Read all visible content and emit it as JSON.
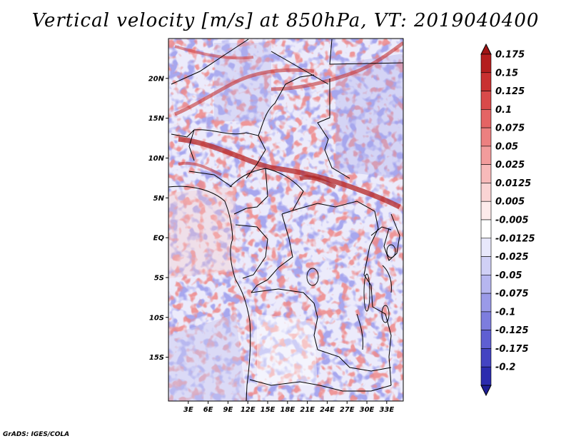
{
  "title": "Vertical velocity [m/s] at 850hPa, VT: 2019040400",
  "footer": "GrADS: IGES/COLA",
  "map": {
    "lon_range": [
      0,
      35.5
    ],
    "lat_range": [
      -20.5,
      25
    ],
    "lat_ticks": [
      {
        "value": 20,
        "label": "20N"
      },
      {
        "value": 15,
        "label": "15N"
      },
      {
        "value": 10,
        "label": "10N"
      },
      {
        "value": 5,
        "label": "5N"
      },
      {
        "value": 0,
        "label": "EQ"
      },
      {
        "value": -5,
        "label": "5S"
      },
      {
        "value": -10,
        "label": "10S"
      },
      {
        "value": -15,
        "label": "15S"
      }
    ],
    "lon_ticks": [
      {
        "value": 3,
        "label": "3E"
      },
      {
        "value": 6,
        "label": "6E"
      },
      {
        "value": 9,
        "label": "9E"
      },
      {
        "value": 12,
        "label": "12E"
      },
      {
        "value": 15,
        "label": "15E"
      },
      {
        "value": 18,
        "label": "18E"
      },
      {
        "value": 21,
        "label": "21E"
      },
      {
        "value": 24,
        "label": "24E"
      },
      {
        "value": 27,
        "label": "27E"
      },
      {
        "value": 30,
        "label": "30E"
      },
      {
        "value": 33,
        "label": "33E"
      }
    ]
  },
  "colorbar": {
    "levels": [
      {
        "label": "0.175",
        "color": "#b41e1e"
      },
      {
        "label": "0.15",
        "color": "#c93030"
      },
      {
        "label": "0.125",
        "color": "#d94a4a"
      },
      {
        "label": "0.1",
        "color": "#e46464"
      },
      {
        "label": "0.075",
        "color": "#ec8080"
      },
      {
        "label": "0.05",
        "color": "#f29c9c"
      },
      {
        "label": "0.025",
        "color": "#f7baba"
      },
      {
        "label": "0.0125",
        "color": "#fad4d4"
      },
      {
        "label": "0.005",
        "color": "#fdebeb"
      },
      {
        "label": "-0.005",
        "color": "#ffffff"
      },
      {
        "label": "-0.0125",
        "color": "#e8e8fb"
      },
      {
        "label": "-0.025",
        "color": "#d0d0f6"
      },
      {
        "label": "-0.05",
        "color": "#b6b6f0"
      },
      {
        "label": "-0.075",
        "color": "#9a9ae8"
      },
      {
        "label": "-0.1",
        "color": "#7d7dde"
      },
      {
        "label": "-0.125",
        "color": "#5f5fd2"
      },
      {
        "label": "-0.175",
        "color": "#4343c2"
      },
      {
        "label": "-0.2",
        "color": "#2b2bae"
      }
    ],
    "top_arrow_color": "#a01414",
    "bottom_arrow_color": "#1e1e96"
  }
}
